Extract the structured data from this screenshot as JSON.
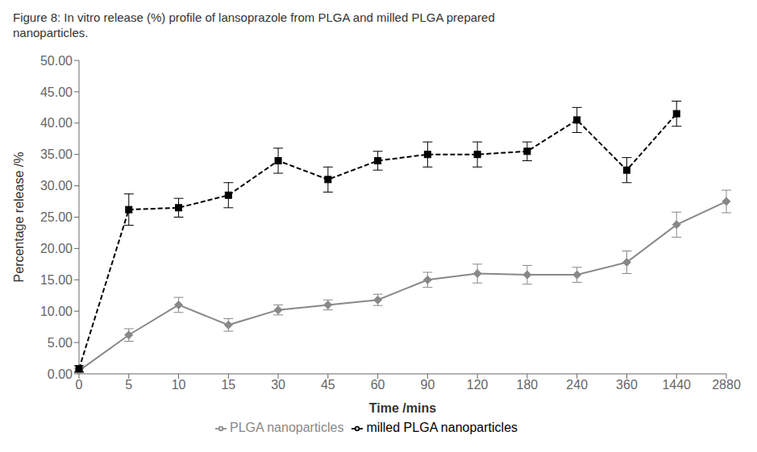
{
  "chart_data": {
    "type": "line",
    "title": "Figure 8: In vitro release (%) profile of lansoprazole from PLGA and milled PLGA prepared\nnanoparticles.",
    "xlabel": "Time /mins",
    "ylabel": "Percentage release /%",
    "categories": [
      "0",
      "5",
      "10",
      "15",
      "30",
      "45",
      "60",
      "90",
      "120",
      "180",
      "240",
      "360",
      "1440",
      "2880"
    ],
    "series": [
      {
        "name": "PLGA nanoparticles",
        "color": "#888888",
        "marker": "diamond",
        "line_style": "solid",
        "values": [
          0.5,
          6.2,
          11.0,
          7.8,
          10.2,
          11.0,
          11.8,
          15.0,
          16.0,
          15.8,
          15.8,
          17.8,
          23.8,
          27.5
        ],
        "errors": [
          0.3,
          1.0,
          1.2,
          1.0,
          0.8,
          0.8,
          0.9,
          1.2,
          1.5,
          1.5,
          1.2,
          1.8,
          2.0,
          1.8
        ]
      },
      {
        "name": "milled PLGA nanoparticles",
        "color": "#000000",
        "marker": "square",
        "line_style": "dashed",
        "values": [
          0.8,
          26.2,
          26.5,
          28.5,
          34.0,
          31.0,
          34.0,
          35.0,
          35.0,
          35.5,
          40.5,
          32.5,
          41.5,
          null
        ],
        "errors": [
          0.5,
          2.5,
          1.5,
          2.0,
          2.0,
          2.0,
          1.5,
          2.0,
          2.0,
          1.5,
          2.0,
          2.0,
          2.0,
          null
        ]
      }
    ],
    "ylim": [
      0,
      50
    ],
    "yticks": [
      {
        "value": 0,
        "label": "0.00"
      },
      {
        "value": 5,
        "label": "5.00"
      },
      {
        "value": 10,
        "label": "10.00"
      },
      {
        "value": 15,
        "label": "15.00"
      },
      {
        "value": 20,
        "label": "20.00"
      },
      {
        "value": 25,
        "label": "25.00"
      },
      {
        "value": 30,
        "label": "30.00"
      },
      {
        "value": 35,
        "label": "35.00"
      },
      {
        "value": 40,
        "label": "40.00"
      },
      {
        "value": 45,
        "label": "45.00"
      },
      {
        "value": 50,
        "label": "50.00"
      }
    ],
    "grid": false,
    "legend": "bottom"
  }
}
